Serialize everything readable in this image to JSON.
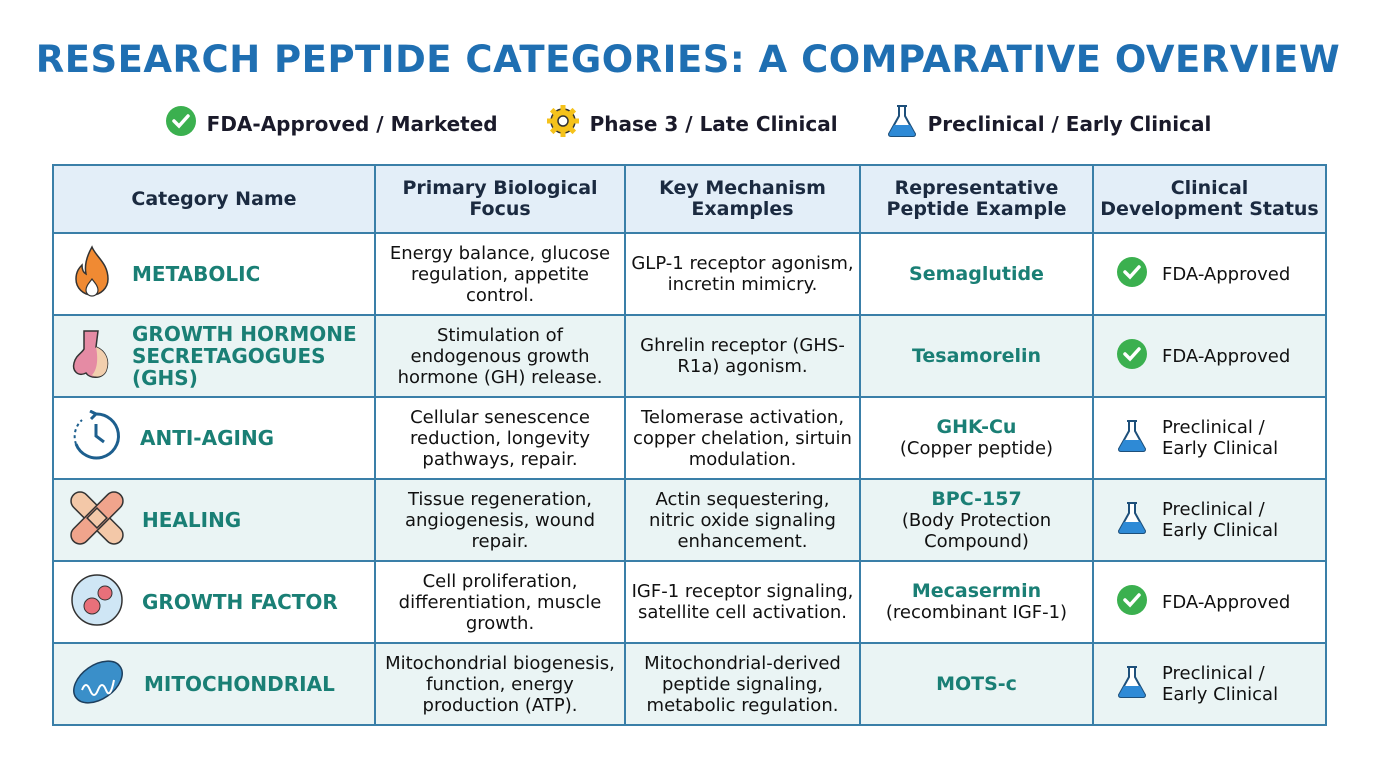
{
  "title": "RESEARCH PEPTIDE CATEGORIES: A COMPARATIVE OVERVIEW",
  "legend": [
    {
      "icon": "check-circle-icon",
      "label": "FDA-Approved / Marketed"
    },
    {
      "icon": "gear-icon",
      "label": "Phase 3 / Late Clinical"
    },
    {
      "icon": "flask-icon",
      "label": "Preclinical / Early Clinical"
    }
  ],
  "headers": [
    "Category Name",
    "Primary Biological Focus",
    "Key Mechanism Examples",
    "Representative Peptide Example",
    "Clinical Development Status"
  ],
  "rows": [
    {
      "icon": "flame-icon",
      "category": "METABOLIC",
      "focus": "Energy balance, glucose regulation, appetite control.",
      "mechanism": "GLP-1 receptor agonism, incretin mimicry.",
      "peptide": "Semaglutide",
      "peptide_note": "",
      "status_icon": "check-circle-icon",
      "status": "FDA-Approved"
    },
    {
      "icon": "pituitary-gland-icon",
      "category": "GROWTH HORMONE SECRETAGOGUES (GHS)",
      "focus": "Stimulation of endogenous growth hormone (GH) release.",
      "mechanism": "Ghrelin receptor (GHS-R1a) agonism.",
      "peptide": "Tesamorelin",
      "peptide_note": "",
      "status_icon": "check-circle-icon",
      "status": "FDA-Approved"
    },
    {
      "icon": "clock-rewind-icon",
      "category": "ANTI-AGING",
      "focus": "Cellular senescence reduction, longevity pathways, repair.",
      "mechanism": "Telomerase activation, copper chelation, sirtuin modulation.",
      "peptide": "GHK-Cu",
      "peptide_note": "(Copper peptide)",
      "status_icon": "flask-icon",
      "status": "Preclinical / Early Clinical"
    },
    {
      "icon": "bandage-icon",
      "category": "HEALING",
      "focus": "Tissue regeneration, angiogenesis, wound repair.",
      "mechanism": "Actin sequestering, nitric oxide signaling enhancement.",
      "peptide": "BPC-157",
      "peptide_note": "(Body Protection Compound)",
      "status_icon": "flask-icon",
      "status": "Preclinical / Early Clinical"
    },
    {
      "icon": "cell-icon",
      "category": "GROWTH FACTOR",
      "focus": "Cell proliferation, differentiation, muscle growth.",
      "mechanism": "IGF-1 receptor signaling, satellite cell activation.",
      "peptide": "Mecasermin",
      "peptide_note": "(recombinant IGF-1)",
      "status_icon": "check-circle-icon",
      "status": "FDA-Approved"
    },
    {
      "icon": "mitochondrion-icon",
      "category": "MITOCHONDRIAL",
      "focus": "Mitochondrial biogenesis, function, energy production (ATP).",
      "mechanism": "Mitochondrial-derived peptide signaling, metabolic regulation.",
      "peptide": "MOTS-c",
      "peptide_note": "",
      "status_icon": "flask-icon",
      "status": "Preclinical / Early Clinical"
    }
  ]
}
